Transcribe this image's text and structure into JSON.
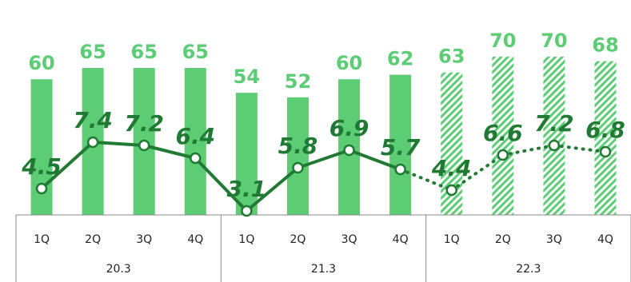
{
  "colors": {
    "bar": "#5ccd74",
    "bar_label": "#5ccd74",
    "line": "#217a33",
    "marker_fill": "#ffffff",
    "axis": "#888888"
  },
  "chart_data": {
    "type": "bar",
    "title": "",
    "xlabel": "",
    "ylabel": "",
    "categories": [
      "1Q",
      "2Q",
      "3Q",
      "4Q",
      "1Q",
      "2Q",
      "3Q",
      "4Q",
      "1Q",
      "2Q",
      "3Q",
      "4Q"
    ],
    "groups": [
      {
        "label": "20.3",
        "start": 0,
        "end": 3
      },
      {
        "label": "21.3",
        "start": 4,
        "end": 7
      },
      {
        "label": "22.3",
        "start": 8,
        "end": 11
      }
    ],
    "series": [
      {
        "kind": "bar",
        "values": [
          60,
          65,
          65,
          65,
          54,
          52,
          60,
          62,
          63,
          70,
          70,
          68
        ],
        "style": [
          "solid",
          "solid",
          "solid",
          "solid",
          "solid",
          "solid",
          "solid",
          "solid",
          "hatched",
          "hatched",
          "hatched",
          "hatched"
        ]
      },
      {
        "kind": "line",
        "values": [
          4.5,
          7.4,
          7.2,
          6.4,
          3.1,
          5.8,
          6.9,
          5.7,
          4.4,
          6.6,
          7.2,
          6.8
        ],
        "style": [
          "solid",
          "solid",
          "solid",
          "solid",
          "solid",
          "solid",
          "solid",
          "solid",
          "dotted",
          "dotted",
          "dotted",
          "dotted"
        ]
      }
    ],
    "grid": false,
    "legend": "none"
  }
}
